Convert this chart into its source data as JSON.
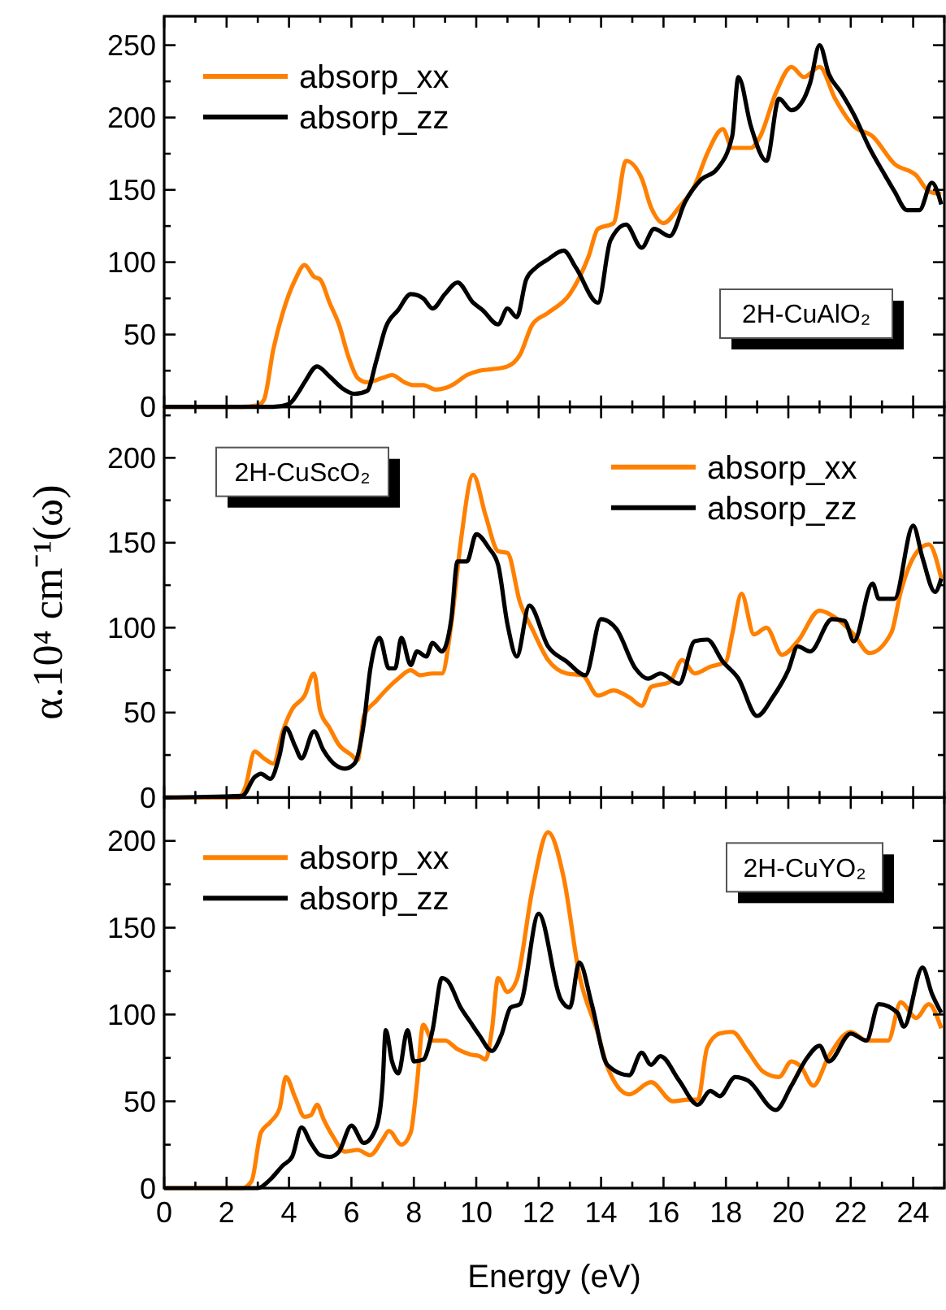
{
  "chart_data": [
    {
      "type": "line",
      "xlim": [
        0,
        25
      ],
      "xticks": [
        0,
        {
          "value": 1,
          "label": null
        },
        2,
        {
          "value": 3,
          "label": null
        },
        4,
        {
          "value": 5,
          "label": null
        },
        6,
        {
          "value": 7,
          "label": null
        },
        8,
        {
          "value": 9,
          "label": null
        },
        10,
        {
          "value": 11,
          "label": null
        },
        12,
        {
          "value": 13,
          "label": null
        },
        14,
        {
          "value": 15,
          "label": null
        },
        16,
        {
          "value": 17,
          "label": null
        },
        18,
        {
          "value": 19,
          "label": null
        },
        20,
        {
          "value": 21,
          "label": null
        },
        22,
        {
          "value": 23,
          "label": null
        },
        24,
        {
          "value": 25,
          "label": null
        }
      ],
      "ylim": [
        0,
        270
      ],
      "yticks": [
        0,
        {
          "value": 25,
          "label": null
        },
        50,
        {
          "value": 75,
          "label": null
        },
        100,
        {
          "value": 125,
          "label": null
        },
        150,
        {
          "value": 175,
          "label": null
        },
        200,
        {
          "value": 225,
          "label": null
        },
        250
      ],
      "tick_labels": "y",
      "legend": "top left",
      "annotations": [
        "2H-CuAlO₂"
      ],
      "series": [
        {
          "name": "absorp_xx",
          "color": "#ff8000",
          "x": [
            0,
            2.5,
            3,
            3.2,
            3.5,
            3.8,
            4.2,
            4.5,
            4.8,
            5.0,
            5.3,
            5.6,
            5.9,
            6.2,
            6.5,
            7.0,
            7.3,
            7.7,
            8.0,
            8.3,
            8.7,
            9.0,
            9.3,
            9.7,
            10.1,
            10.5,
            11.0,
            11.4,
            11.8,
            12.3,
            13.0,
            13.6,
            13.9,
            14.4,
            14.8,
            15.3,
            15.6,
            16.0,
            16.5,
            17.0,
            17.4,
            17.9,
            18.2,
            18.8,
            19.1,
            19.6,
            20.1,
            20.5,
            21.0,
            21.5,
            22.1,
            22.7,
            23.4,
            24.1,
            24.5,
            24.9
          ],
          "values": [
            0,
            0,
            1,
            5,
            40,
            65,
            88,
            98,
            90,
            88,
            72,
            57,
            35,
            20,
            17,
            20,
            22,
            17,
            15,
            15,
            12,
            13,
            16,
            22,
            25,
            26,
            28,
            36,
            57,
            65,
            78,
            104,
            123,
            127,
            170,
            158,
            138,
            127,
            138,
            153,
            175,
            192,
            179,
            179,
            187,
            217,
            235,
            228,
            235,
            213,
            194,
            187,
            168,
            160,
            149,
            147
          ]
        },
        {
          "name": "absorp_zz",
          "color": "#000000",
          "x": [
            0,
            3.5,
            4.0,
            4.3,
            4.5,
            4.9,
            5.3,
            5.7,
            6.1,
            6.5,
            6.8,
            7.1,
            7.5,
            7.9,
            8.3,
            8.6,
            9.0,
            9.4,
            9.9,
            10.2,
            10.7,
            11.0,
            11.3,
            11.6,
            11.9,
            12.3,
            12.8,
            13.2,
            13.9,
            14.3,
            14.8,
            15.3,
            15.7,
            16.2,
            16.7,
            17.2,
            17.7,
            18.2,
            18.4,
            18.8,
            19.3,
            19.7,
            20.1,
            20.5,
            20.7,
            21.0,
            21.3,
            21.7,
            22.1,
            22.6,
            23.1,
            23.4,
            23.8,
            24.2,
            24.6,
            24.9
          ],
          "values": [
            0,
            0,
            2,
            10,
            17,
            28,
            21,
            13,
            9,
            11,
            32,
            55,
            67,
            78,
            75,
            68,
            78,
            86,
            72,
            67,
            57,
            68,
            62,
            88,
            96,
            102,
            108,
            96,
            72,
            115,
            126,
            110,
            123,
            118,
            142,
            157,
            164,
            187,
            228,
            194,
            170,
            213,
            205,
            213,
            224,
            250,
            230,
            217,
            202,
            179,
            160,
            149,
            136,
            136,
            155,
            140
          ]
        }
      ]
    },
    {
      "type": "line",
      "xlim": [
        0,
        25
      ],
      "xticks": [
        0,
        {
          "value": 1,
          "label": null
        },
        2,
        {
          "value": 3,
          "label": null
        },
        4,
        {
          "value": 5,
          "label": null
        },
        6,
        {
          "value": 7,
          "label": null
        },
        8,
        {
          "value": 9,
          "label": null
        },
        10,
        {
          "value": 11,
          "label": null
        },
        12,
        {
          "value": 13,
          "label": null
        },
        14,
        {
          "value": 15,
          "label": null
        },
        16,
        {
          "value": 17,
          "label": null
        },
        18,
        {
          "value": 19,
          "label": null
        },
        20,
        {
          "value": 21,
          "label": null
        },
        22,
        {
          "value": 23,
          "label": null
        },
        24,
        {
          "value": 25,
          "label": null
        }
      ],
      "ylim": [
        0,
        230
      ],
      "yticks": [
        0,
        {
          "value": 25,
          "label": null
        },
        50,
        {
          "value": 75,
          "label": null
        },
        100,
        {
          "value": 125,
          "label": null
        },
        150,
        {
          "value": 175,
          "label": null
        },
        200,
        {
          "value": 225,
          "label": null
        }
      ],
      "tick_labels": "y",
      "legend": "top right",
      "ylabel": "α.10⁴ cm⁻¹(ω)",
      "annotations": [
        "2H-CuScO₂"
      ],
      "series": [
        {
          "name": "absorp_xx",
          "color": "#ff8000",
          "x": [
            0,
            2.4,
            2.6,
            2.9,
            3.2,
            3.5,
            3.8,
            4.1,
            4.5,
            4.8,
            5.0,
            5.3,
            5.6,
            6.0,
            6.2,
            6.4,
            6.8,
            7.2,
            7.5,
            7.9,
            8.2,
            8.6,
            8.9,
            9.2,
            9.5,
            9.9,
            10.3,
            10.7,
            11.0,
            11.4,
            11.8,
            12.3,
            12.9,
            13.4,
            13.9,
            14.4,
            14.9,
            15.3,
            15.6,
            16.2,
            16.6,
            17.0,
            17.5,
            18.0,
            18.2,
            18.5,
            18.9,
            19.3,
            19.8,
            20.3,
            21.0,
            21.5,
            22.1,
            22.6,
            23.3,
            23.6,
            24.1,
            24.5,
            24.9
          ],
          "values": [
            0,
            0,
            6,
            27,
            23,
            20,
            39,
            52,
            60,
            73,
            51,
            41,
            31,
            25,
            22,
            48,
            57,
            65,
            70,
            75,
            72,
            73,
            73,
            102,
            150,
            190,
            166,
            145,
            144,
            115,
            99,
            81,
            73,
            72,
            60,
            63,
            59,
            54,
            65,
            68,
            81,
            73,
            77,
            80,
            96,
            120,
            96,
            100,
            84,
            92,
            110,
            106,
            96,
            85,
            97,
            121,
            144,
            149,
            129
          ]
        },
        {
          "name": "absorp_zz",
          "color": "#000000",
          "x": [
            0,
            2.5,
            2.9,
            3.1,
            3.4,
            3.7,
            3.9,
            4.2,
            4.4,
            4.8,
            5.1,
            5.5,
            5.8,
            6.1,
            6.4,
            6.6,
            6.9,
            7.2,
            7.4,
            7.6,
            7.9,
            8.1,
            8.4,
            8.6,
            8.9,
            9.2,
            9.4,
            9.7,
            10.0,
            10.4,
            10.7,
            11.0,
            11.3,
            11.7,
            12.3,
            12.9,
            13.5,
            14.0,
            14.5,
            15.1,
            15.5,
            15.9,
            16.5,
            17.0,
            17.4,
            17.9,
            18.4,
            19.0,
            19.5,
            20.0,
            20.3,
            20.7,
            21.4,
            21.8,
            22.1,
            22.7,
            22.9,
            23.4,
            24.0,
            24.3,
            24.7,
            24.9
          ],
          "values": [
            0,
            1,
            12,
            14,
            11,
            25,
            41,
            30,
            23,
            39,
            28,
            19,
            17,
            20,
            44,
            75,
            94,
            76,
            76,
            94,
            78,
            86,
            83,
            91,
            86,
            105,
            139,
            139,
            155,
            147,
            137,
            102,
            83,
            113,
            89,
            80,
            72,
            105,
            99,
            76,
            70,
            73,
            67,
            92,
            93,
            80,
            70,
            48,
            59,
            75,
            89,
            86,
            105,
            104,
            92,
            126,
            117,
            117,
            160,
            141,
            121,
            129
          ]
        }
      ]
    },
    {
      "type": "line",
      "xlim": [
        0,
        25
      ],
      "xticks": [
        0,
        {
          "value": 1,
          "label": null
        },
        2,
        {
          "value": 3,
          "label": null
        },
        4,
        {
          "value": 5,
          "label": null
        },
        6,
        {
          "value": 7,
          "label": null
        },
        8,
        {
          "value": 9,
          "label": null
        },
        10,
        {
          "value": 11,
          "label": null
        },
        12,
        {
          "value": 13,
          "label": null
        },
        14,
        {
          "value": 15,
          "label": null
        },
        16,
        {
          "value": 17,
          "label": null
        },
        18,
        {
          "value": 19,
          "label": null
        },
        20,
        {
          "value": 21,
          "label": null
        },
        22,
        {
          "value": 23,
          "label": null
        },
        24,
        {
          "value": 25,
          "label": null
        }
      ],
      "ylim": [
        0,
        225
      ],
      "yticks": [
        0,
        {
          "value": 25,
          "label": null
        },
        50,
        {
          "value": 75,
          "label": null
        },
        100,
        {
          "value": 125,
          "label": null
        },
        150,
        {
          "value": 175,
          "label": null
        },
        200
      ],
      "legend": "top left",
      "xlabel": "Energy (eV)",
      "annotations": [
        "2H-CuYO₂"
      ],
      "series": [
        {
          "name": "absorp_xx",
          "color": "#ff8000",
          "x": [
            0,
            2.5,
            2.8,
            3.1,
            3.4,
            3.7,
            3.9,
            4.2,
            4.5,
            4.7,
            4.9,
            5.1,
            5.4,
            5.8,
            6.2,
            6.6,
            7.0,
            7.2,
            7.6,
            7.9,
            8.1,
            8.3,
            8.6,
            9.0,
            9.4,
            9.8,
            10.1,
            10.3,
            10.5,
            10.7,
            11.0,
            11.3,
            11.8,
            12.3,
            12.8,
            13.3,
            13.9,
            14.2,
            14.9,
            15.6,
            16.3,
            16.8,
            17.1,
            17.4,
            17.8,
            18.2,
            18.7,
            19.2,
            19.7,
            20.1,
            20.4,
            20.8,
            21.3,
            22.0,
            22.5,
            23.2,
            23.6,
            24.1,
            24.5,
            24.9
          ],
          "values": [
            0,
            0,
            4,
            32,
            38,
            46,
            64,
            52,
            41,
            42,
            48,
            40,
            30,
            21,
            22,
            19,
            28,
            33,
            25,
            32,
            60,
            94,
            85,
            85,
            80,
            77,
            76,
            74,
            91,
            121,
            113,
            120,
            172,
            205,
            179,
            123,
            89,
            70,
            54,
            61,
            50,
            51,
            51,
            81,
            89,
            90,
            79,
            67,
            64,
            73,
            70,
            59,
            76,
            90,
            85,
            85,
            107,
            98,
            106,
            92
          ]
        },
        {
          "name": "absorp_zz",
          "color": "#000000",
          "x": [
            0,
            3.0,
            3.4,
            3.8,
            4.1,
            4.4,
            4.7,
            5.0,
            5.3,
            5.6,
            6.0,
            6.4,
            6.8,
            7.0,
            7.1,
            7.3,
            7.5,
            7.8,
            8.0,
            8.3,
            8.6,
            8.9,
            9.1,
            9.5,
            9.8,
            10.1,
            10.5,
            10.8,
            11.1,
            11.4,
            12.0,
            12.7,
            13.0,
            13.3,
            13.7,
            14.2,
            14.9,
            15.3,
            15.6,
            15.9,
            16.5,
            17.1,
            17.5,
            17.8,
            18.3,
            18.7,
            19.6,
            20.1,
            20.6,
            21.0,
            21.3,
            22.0,
            22.5,
            22.9,
            23.5,
            23.7,
            24.3,
            24.6,
            24.9
          ],
          "values": [
            0,
            0,
            5,
            13,
            18,
            35,
            26,
            19,
            18,
            21,
            36,
            26,
            35,
            60,
            91,
            73,
            66,
            91,
            73,
            74,
            91,
            121,
            119,
            104,
            96,
            88,
            79,
            88,
            104,
            106,
            158,
            109,
            104,
            130,
            106,
            71,
            65,
            78,
            71,
            76,
            62,
            48,
            56,
            53,
            64,
            62,
            45,
            59,
            75,
            82,
            73,
            89,
            85,
            106,
            101,
            93,
            127,
            112,
            101
          ]
        }
      ]
    }
  ]
}
